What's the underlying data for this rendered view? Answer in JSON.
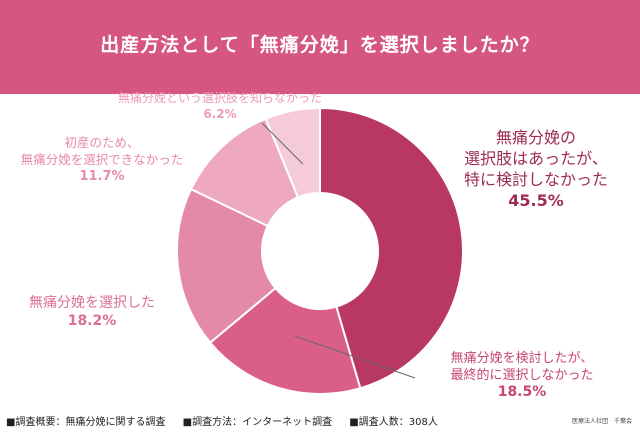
{
  "header": {
    "title": "出産方法として「無痛分娩」を選択しましたか？"
  },
  "chart_data": {
    "type": "pie",
    "donut": true,
    "title": "出産方法として「無痛分娩」を選択しましたか？",
    "slices": [
      {
        "lines": [
          "無痛分娩の",
          "選択肢はあったが、",
          "特に検討しなかった"
        ],
        "pct_label": "45.5%",
        "value": 45.5,
        "color": "#b93863",
        "text_color": "#9e2a55"
      },
      {
        "lines": [
          "無痛分娩を検討したが、",
          "最終的に選択しなかった"
        ],
        "pct_label": "18.5%",
        "value": 18.5,
        "color": "#d95e8a",
        "text_color": "#c7476f"
      },
      {
        "lines": [
          "無痛分娩を選択した"
        ],
        "pct_label": "18.2%",
        "value": 18.2,
        "color": "#e48aa7",
        "text_color": "#dd6f92"
      },
      {
        "lines": [
          "初産のため、",
          "無痛分娩を選択できなかった"
        ],
        "pct_label": "11.7%",
        "value": 11.7,
        "color": "#eea9bf",
        "text_color": "#e88aaa"
      },
      {
        "lines": [
          "無痛分娩という選択肢を知らなかった"
        ],
        "pct_label": "6.2%",
        "value": 6.2,
        "color": "#f5cbd8",
        "text_color": "#ee9db6"
      }
    ]
  },
  "footer": {
    "items": [
      "■調査概要：無痛分娩に関する調査",
      "■調査方法：インターネット調査",
      "■調査人数：308人"
    ],
    "org": "医療法人社団　千葉会"
  }
}
